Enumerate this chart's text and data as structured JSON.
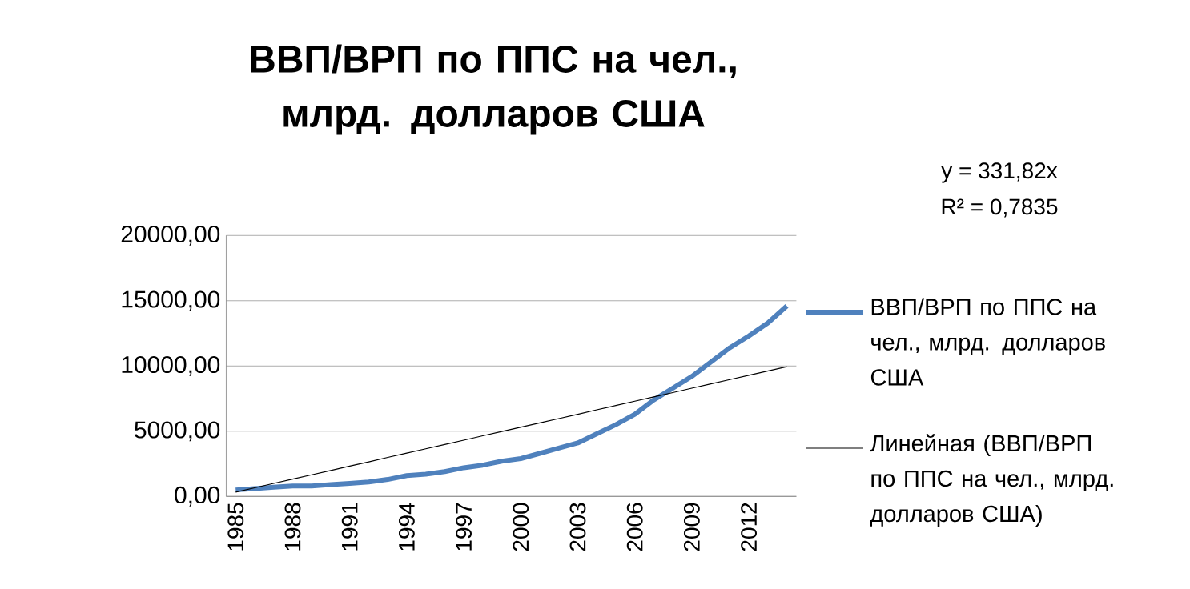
{
  "chart_data": {
    "type": "line",
    "title": "ВВП/ВРП по ППС на чел., млрд. долларов США",
    "categories": [
      "1985",
      null,
      null,
      "1988",
      null,
      null,
      "1991",
      null,
      null,
      "1994",
      null,
      null,
      "1997",
      null,
      null,
      "2000",
      null,
      null,
      "2003",
      null,
      null,
      "2006",
      null,
      null,
      "2009",
      null,
      null,
      "2012",
      null,
      null
    ],
    "series": [
      {
        "name": "ВВП/ВРП по ППС на чел., млрд. долларов США",
        "color": "#4f81bd",
        "values": [
          500,
          600,
          700,
          800,
          800,
          900,
          1000,
          1100,
          1300,
          1600,
          1700,
          1900,
          2200,
          2400,
          2700,
          2900,
          3300,
          3700,
          4100,
          4800,
          5500,
          6300,
          7400,
          8300,
          9200,
          10300,
          11400,
          12300,
          13300,
          14600
        ]
      },
      {
        "name": "Линейная (ВВП/ВРП по ППС на чел., млрд. долларов США)",
        "color": "#000000",
        "values": [
          330,
          660,
          1000,
          1330,
          1660,
          1990,
          2320,
          2650,
          2990,
          3320,
          3650,
          3980,
          4310,
          4650,
          4980,
          5310,
          5640,
          5970,
          6300,
          6640,
          6970,
          7300,
          7630,
          7960,
          8300,
          8630,
          8960,
          9290,
          9620,
          9950
        ]
      }
    ],
    "ylim": [
      0,
      20000
    ],
    "yticks": [
      {
        "value": 0,
        "label": "0,00"
      },
      {
        "value": 5000,
        "label": "5000,00"
      },
      {
        "value": 10000,
        "label": "10000,00"
      },
      {
        "value": 15000,
        "label": "15000,00"
      },
      {
        "value": 20000,
        "label": "20000,00"
      }
    ],
    "grid": "y",
    "legend": "right",
    "annotations": [
      "y = 331,82x",
      "R² = 0,7835"
    ]
  }
}
